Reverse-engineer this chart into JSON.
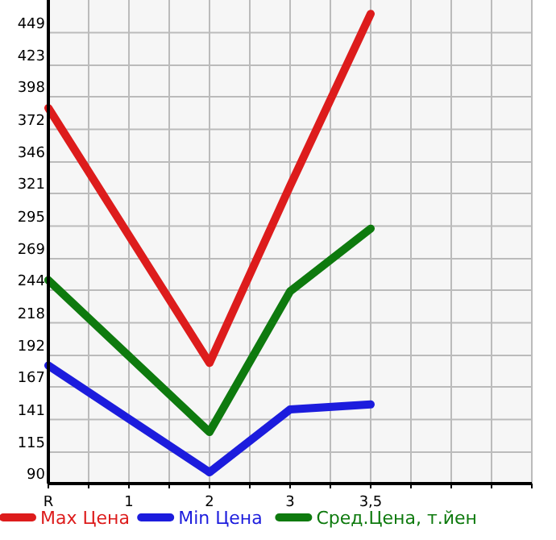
{
  "chart_data": {
    "type": "line",
    "categories": [
      "R",
      "1",
      "2",
      "3",
      "3,5",
      null
    ],
    "series": [
      {
        "name": "Max Цена",
        "color": "#dd1c1c",
        "values": [
          389,
          null,
          186,
          327,
          464,
          null
        ]
      },
      {
        "name": "Min Цена",
        "color": "#1c1cdd",
        "values": [
          184,
          null,
          99,
          149,
          153,
          null
        ]
      },
      {
        "name": "Сред.Цена, т.йен",
        "color": "#0e7a0e",
        "values": [
          252,
          null,
          131,
          243,
          293,
          null
        ]
      }
    ],
    "ylim": [
      90,
      475
    ],
    "yticks": [
      90,
      115,
      141,
      167,
      192,
      218,
      244,
      269,
      295,
      321,
      346,
      372,
      398,
      423,
      449
    ],
    "grid": true,
    "legend": "bottom",
    "marker": "none",
    "line_style": "solid"
  }
}
